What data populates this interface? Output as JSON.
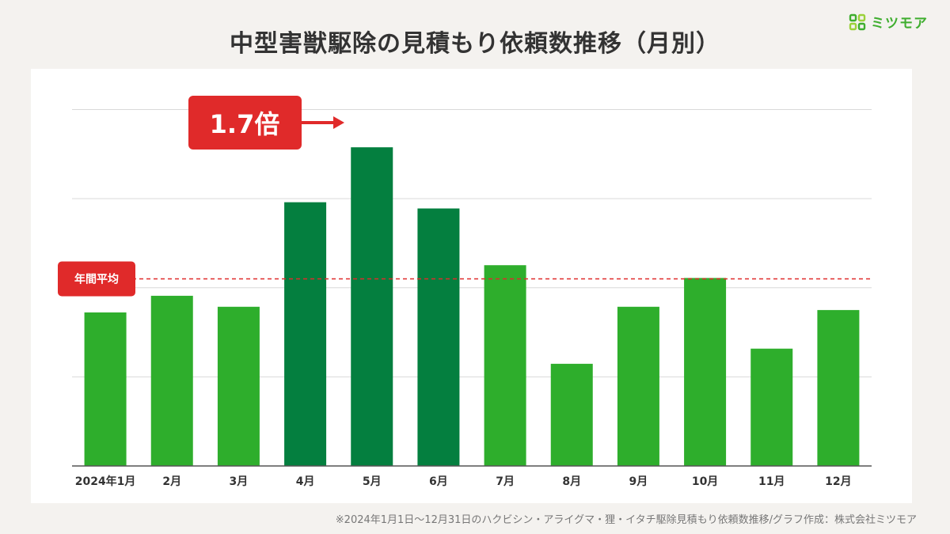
{
  "title": "中型害獣駆除の見積もり依頼数推移（月別）",
  "logo": {
    "text": "ミツモア"
  },
  "footnote": "※2024年1月1日〜12月31日のハクビシン・アライグマ・狸・イタチ駆除見積もり依頼数推移/グラフ作成：株式会社ミツモア",
  "colors": {
    "bar": "#2eae2c",
    "bar_highlight": "#047f3f",
    "accent": "#e02a2a",
    "grid": "#d9d9d9",
    "axis": "#555555"
  },
  "chart_data": {
    "type": "bar",
    "categories": [
      "2024年1月",
      "2月",
      "3月",
      "4月",
      "5月",
      "6月",
      "7月",
      "8月",
      "9月",
      "10月",
      "11月",
      "12月"
    ],
    "values": [
      51.7,
      57.3,
      53.6,
      88.8,
      107.3,
      86.7,
      67.6,
      34.4,
      53.6,
      63.3,
      39.5,
      52.5
    ],
    "highlight_indices": [
      3,
      4,
      5
    ],
    "ylim": [
      0,
      120
    ],
    "grid": true,
    "y_tick_labels_shown": false,
    "average": {
      "label": "年間平均",
      "value": 63.0
    },
    "annotation": {
      "text": "1.7倍"
    }
  }
}
